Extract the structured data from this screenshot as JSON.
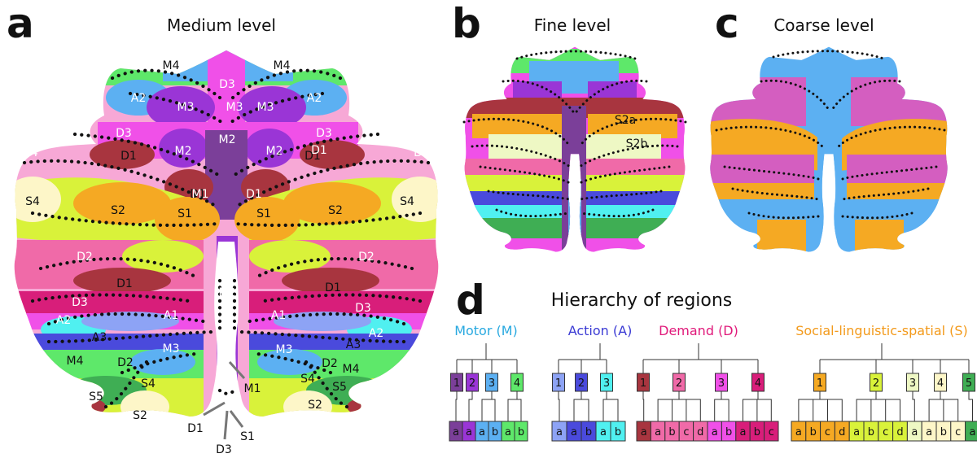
{
  "panels": {
    "a": {
      "letter": "a",
      "title": "Medium level"
    },
    "b": {
      "letter": "b",
      "title": "Fine level"
    },
    "c": {
      "letter": "c",
      "title": "Coarse level"
    },
    "d": {
      "letter": "d",
      "title": "Hierarchy of regions"
    }
  },
  "region_labels": {
    "left": [
      "M4",
      "A2",
      "M3",
      "D3",
      "D4",
      "D1",
      "M2",
      "D1",
      "S4",
      "S2",
      "S1",
      "D2",
      "D1",
      "D3",
      "A1",
      "A2",
      "A3",
      "M3",
      "M4",
      "D2",
      "S4",
      "S5",
      "S2"
    ],
    "mid": [
      "D3",
      "M3",
      "M3",
      "M2",
      "M1",
      "D1",
      "M2",
      "M1",
      "S1",
      "D1",
      "D3"
    ],
    "right": [
      "M4",
      "A2",
      "D3",
      "D1",
      "D4",
      "S4",
      "S2",
      "S1",
      "D2",
      "D1",
      "D3",
      "A1",
      "A2",
      "A3",
      "M3",
      "M4",
      "D2",
      "S4",
      "S5",
      "S2",
      "M2",
      "D1"
    ],
    "fine": [
      "S2a",
      "S2b"
    ]
  },
  "hierarchy": {
    "groups": [
      {
        "title": "Motor (M)",
        "color": "#29a9e0",
        "parents": [
          {
            "label": "1",
            "color": "#7b3f99"
          },
          {
            "label": "2",
            "color": "#9a35d6"
          },
          {
            "label": "3",
            "color": "#5cb0f2"
          },
          {
            "label": "4",
            "color": "#5ee86a"
          }
        ],
        "leaves": [
          {
            "label": "a",
            "color": "#7b3f99"
          },
          {
            "label": "a",
            "color": "#9a35d6"
          },
          {
            "label": "a",
            "color": "#5cb0f2"
          },
          {
            "label": "b",
            "color": "#5cb0f2"
          },
          {
            "label": "a",
            "color": "#5ee86a"
          },
          {
            "label": "b",
            "color": "#5ee86a"
          }
        ]
      },
      {
        "title": "Action (A)",
        "color": "#3b3bd4",
        "parents": [
          {
            "label": "1",
            "color": "#8da3f5"
          },
          {
            "label": "2",
            "color": "#4a4adc"
          },
          {
            "label": "3",
            "color": "#50f0f0"
          }
        ],
        "leaves": [
          {
            "label": "a",
            "color": "#8da3f5"
          },
          {
            "label": "a",
            "color": "#4a4adc"
          },
          {
            "label": "b",
            "color": "#4a4adc"
          },
          {
            "label": "a",
            "color": "#50f0f0"
          },
          {
            "label": "b",
            "color": "#50f0f0"
          }
        ]
      },
      {
        "title": "Demand (D)",
        "color": "#e0197a",
        "parents": [
          {
            "label": "1",
            "color": "#a8353f"
          },
          {
            "label": "2",
            "color": "#f06aa8"
          },
          {
            "label": "3",
            "color": "#f050e8"
          },
          {
            "label": "4",
            "color": "#d81e7a"
          }
        ],
        "leaves": [
          {
            "label": "a",
            "color": "#a8353f"
          },
          {
            "label": "a",
            "color": "#f06aa8"
          },
          {
            "label": "b",
            "color": "#f06aa8"
          },
          {
            "label": "c",
            "color": "#f06aa8"
          },
          {
            "label": "d",
            "color": "#f06aa8"
          },
          {
            "label": "a",
            "color": "#f050e8"
          },
          {
            "label": "b",
            "color": "#f050e8"
          },
          {
            "label": "a",
            "color": "#d81e7a"
          },
          {
            "label": "b",
            "color": "#d81e7a"
          },
          {
            "label": "c",
            "color": "#d81e7a"
          }
        ]
      },
      {
        "title": "Social-linguistic-spatial (S)",
        "color": "#f39a1b",
        "parents": [
          {
            "label": "1",
            "color": "#f5a923"
          },
          {
            "label": "2",
            "color": "#d9f23a"
          },
          {
            "label": "3",
            "color": "#eef8c4"
          },
          {
            "label": "4",
            "color": "#fdf6c8"
          },
          {
            "label": "5",
            "color": "#3fae54"
          }
        ],
        "leaves": [
          {
            "label": "a",
            "color": "#f5a923"
          },
          {
            "label": "b",
            "color": "#f5a923"
          },
          {
            "label": "c",
            "color": "#f5a923"
          },
          {
            "label": "d",
            "color": "#f5a923"
          },
          {
            "label": "a",
            "color": "#d9f23a"
          },
          {
            "label": "b",
            "color": "#d9f23a"
          },
          {
            "label": "c",
            "color": "#d9f23a"
          },
          {
            "label": "d",
            "color": "#d9f23a"
          },
          {
            "label": "a",
            "color": "#eef8c4"
          },
          {
            "label": "a",
            "color": "#fdf6c8"
          },
          {
            "label": "b",
            "color": "#fdf6c8"
          },
          {
            "label": "c",
            "color": "#fdf6c8"
          },
          {
            "label": "a",
            "color": "#3fae54"
          }
        ]
      }
    ]
  }
}
